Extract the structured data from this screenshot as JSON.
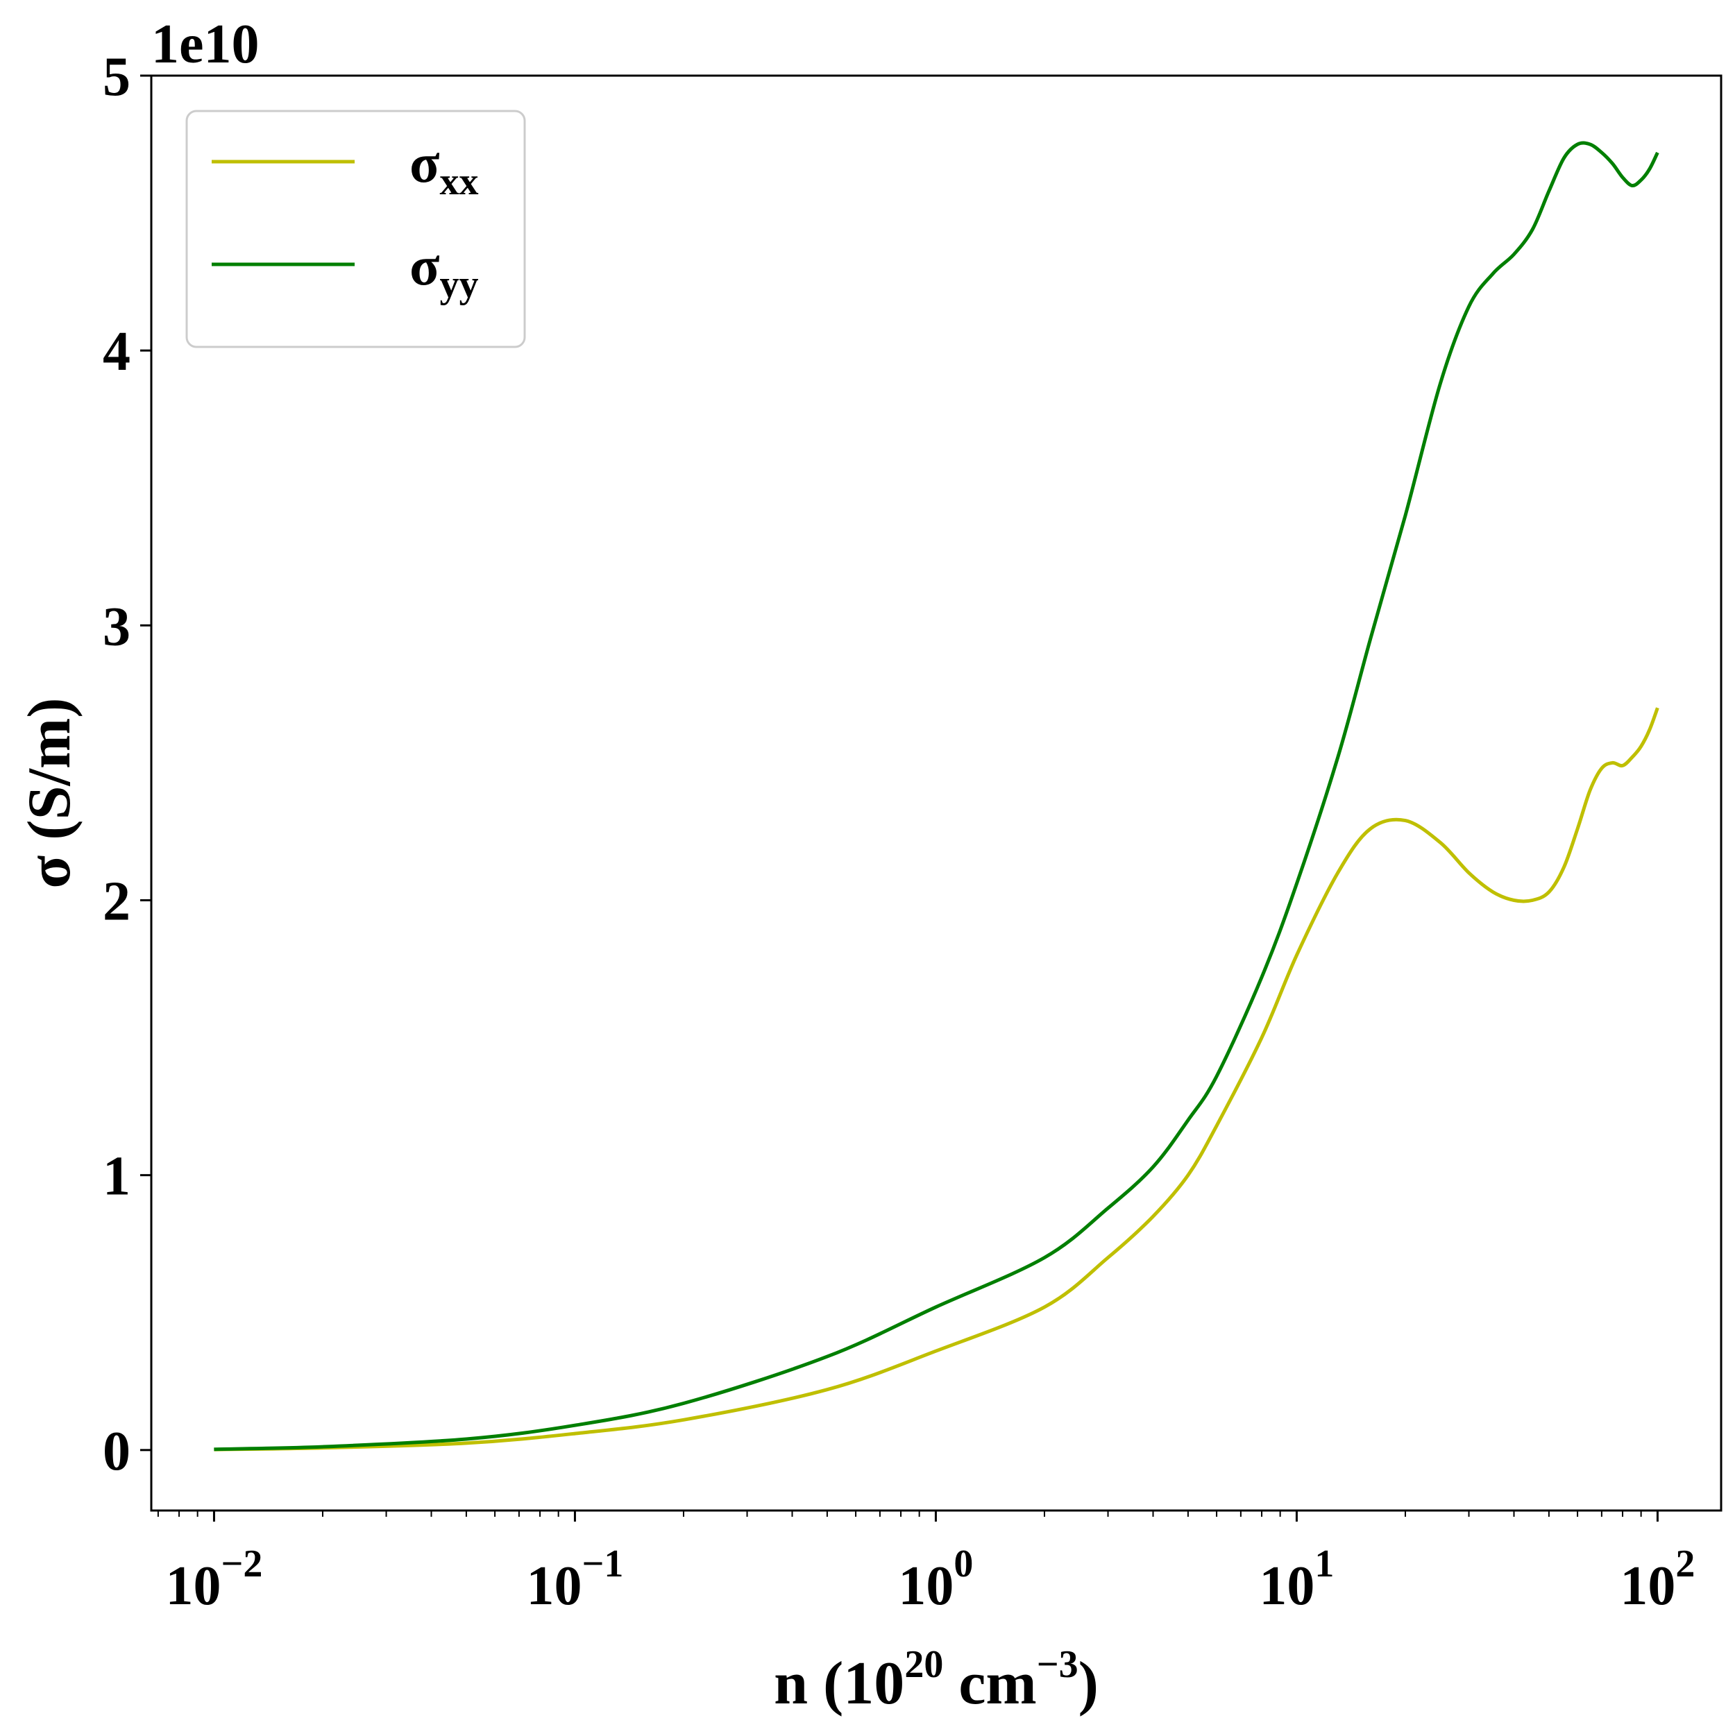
{
  "chart_data": {
    "type": "line",
    "x_scale": "log",
    "xlim": [
      0.0067,
      150
    ],
    "ylim": [
      -2.2,
      50
    ],
    "y_multiplier_label": "1e10",
    "xlabel": {
      "main": "n (10",
      "sup1": "20",
      "mid": " cm",
      "sup2": "−3",
      "end": ")"
    },
    "ylabel": "σ (S/m)",
    "x_ticks": [
      {
        "value": 0.01,
        "base": "10",
        "exp": "−2"
      },
      {
        "value": 0.1,
        "base": "10",
        "exp": "−1"
      },
      {
        "value": 1,
        "base": "10",
        "exp": "0"
      },
      {
        "value": 10,
        "base": "10",
        "exp": "1"
      },
      {
        "value": 100,
        "base": "10",
        "exp": "2"
      }
    ],
    "y_ticks": [
      {
        "value": 0,
        "label": "0"
      },
      {
        "value": 10,
        "label": "1"
      },
      {
        "value": 20,
        "label": "2"
      },
      {
        "value": 30,
        "label": "3"
      },
      {
        "value": 40,
        "label": "4"
      },
      {
        "value": 50,
        "label": "5"
      }
    ],
    "legend": {
      "placement": "top-left"
    },
    "series": [
      {
        "name": "σ",
        "name_sub": "xx",
        "color": "#bfbf00",
        "x": [
          0.01,
          0.02,
          0.05,
          0.1,
          0.2,
          0.5,
          1,
          2,
          3,
          4,
          5,
          6,
          8,
          10,
          13,
          16,
          20,
          25,
          30,
          35,
          40,
          45,
          50,
          55,
          60,
          65,
          70,
          75,
          80,
          85,
          90,
          95,
          100
        ],
        "y": [
          0.02,
          0.08,
          0.25,
          0.6,
          1.1,
          2.2,
          3.6,
          5.2,
          7.0,
          8.5,
          10.0,
          11.8,
          15.0,
          18.0,
          21.0,
          22.6,
          22.9,
          22.1,
          21.0,
          20.3,
          20.0,
          20.0,
          20.3,
          21.2,
          22.6,
          24.0,
          24.8,
          25.0,
          24.9,
          25.2,
          25.6,
          26.2,
          27.0
        ]
      },
      {
        "name": "σ",
        "name_sub": "yy",
        "color": "#007f00",
        "x": [
          0.01,
          0.02,
          0.05,
          0.1,
          0.2,
          0.5,
          1,
          2,
          3,
          4,
          5,
          6,
          8,
          10,
          13,
          16,
          20,
          25,
          30,
          35,
          40,
          45,
          50,
          55,
          60,
          65,
          70,
          75,
          80,
          85,
          90,
          95,
          100
        ],
        "y": [
          0.03,
          0.12,
          0.4,
          0.9,
          1.7,
          3.4,
          5.2,
          7.0,
          8.8,
          10.3,
          12.0,
          13.6,
          17.2,
          20.6,
          25.2,
          29.5,
          34.0,
          38.8,
          41.6,
          42.8,
          43.5,
          44.4,
          45.8,
          47.0,
          47.5,
          47.5,
          47.2,
          46.8,
          46.3,
          46.0,
          46.2,
          46.6,
          47.2
        ]
      }
    ]
  }
}
